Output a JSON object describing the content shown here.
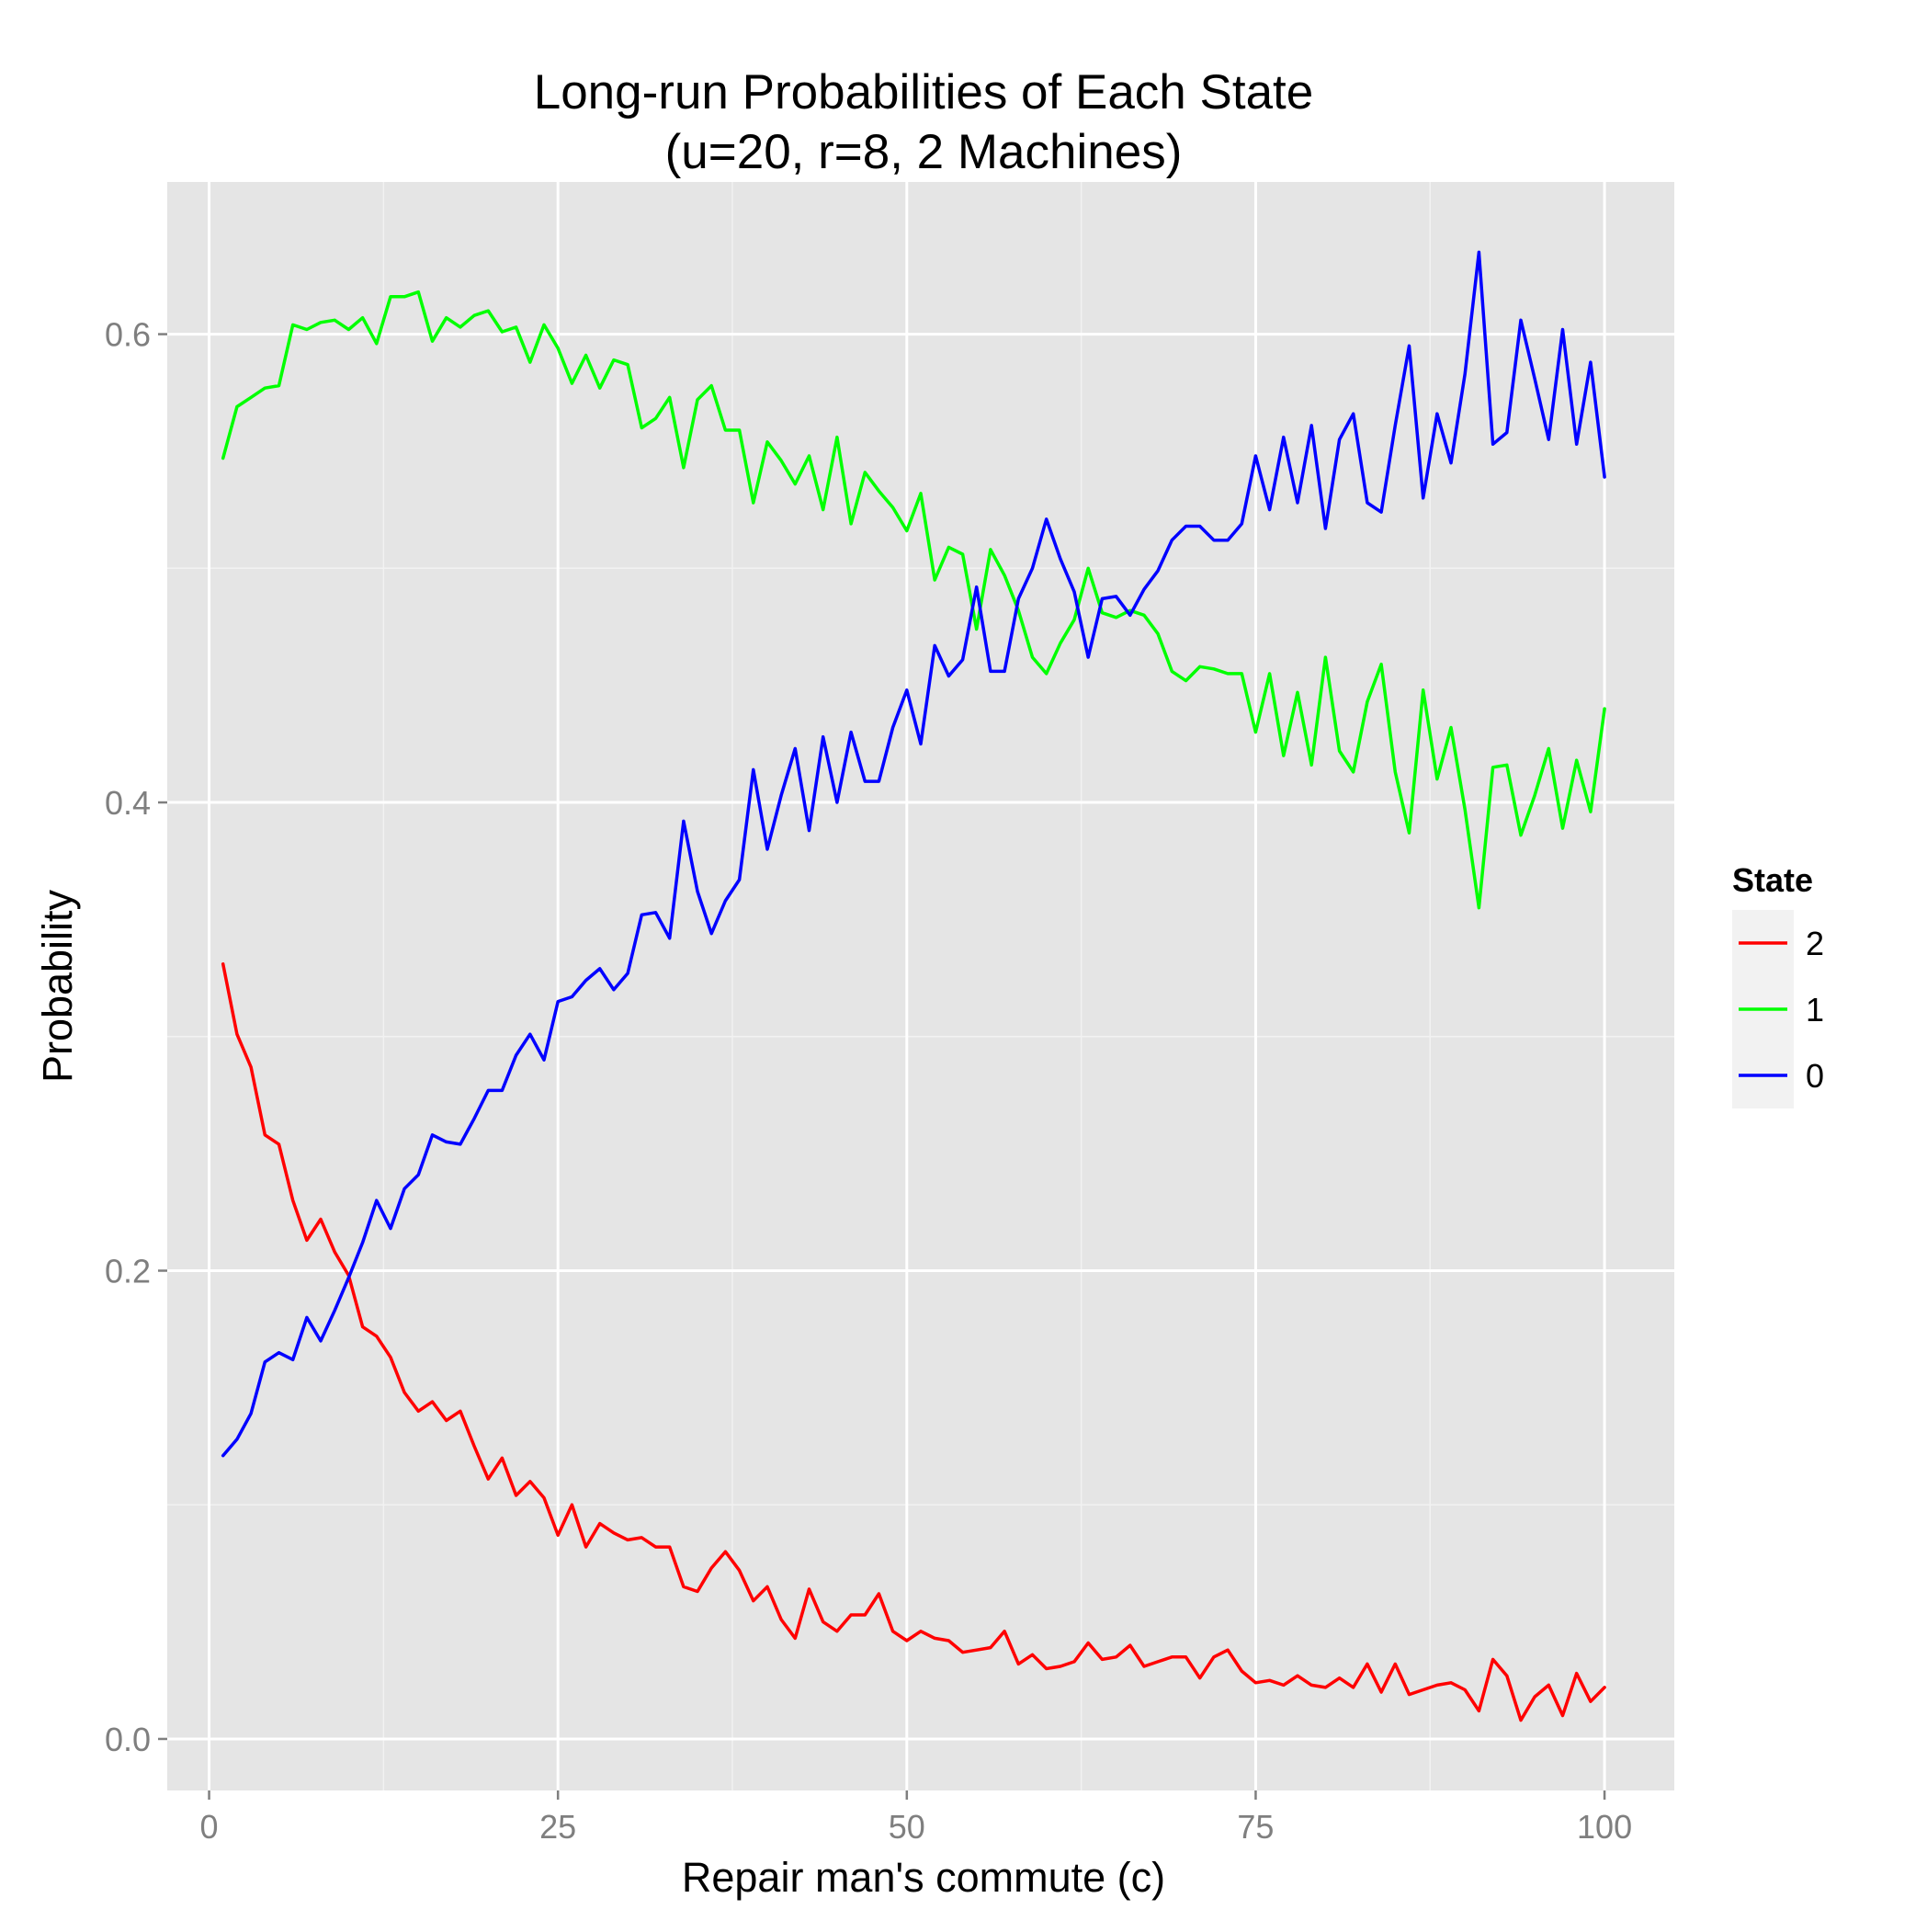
{
  "chart_data": {
    "type": "line",
    "title": "Long-run Probabilities of Each State",
    "subtitle": "(u=20, r=8, 2 Machines)",
    "xlabel": "Repair man's commute (c)",
    "ylabel": "Probability",
    "xlim": [
      -3,
      105
    ],
    "ylim": [
      -0.022,
      0.665
    ],
    "x_ticks": [
      0,
      25,
      50,
      75,
      100
    ],
    "x_tick_labels": [
      "0",
      "25",
      "50",
      "75",
      "100"
    ],
    "y_ticks": [
      0.0,
      0.2,
      0.4,
      0.6
    ],
    "y_tick_labels": [
      "0.0",
      "0.2",
      "0.4",
      "0.6"
    ],
    "grid": true,
    "legend": {
      "title": "State",
      "position": "right"
    },
    "x": [
      1,
      2,
      3,
      4,
      5,
      6,
      7,
      8,
      9,
      10,
      11,
      12,
      13,
      14,
      15,
      16,
      17,
      18,
      19,
      20,
      21,
      22,
      23,
      24,
      25,
      26,
      27,
      28,
      29,
      30,
      31,
      32,
      33,
      34,
      35,
      36,
      37,
      38,
      39,
      40,
      41,
      42,
      43,
      44,
      45,
      46,
      47,
      48,
      49,
      50,
      51,
      52,
      53,
      54,
      55,
      56,
      57,
      58,
      59,
      60,
      61,
      62,
      63,
      64,
      65,
      66,
      67,
      68,
      69,
      70,
      71,
      72,
      73,
      74,
      75,
      76,
      77,
      78,
      79,
      80,
      81,
      82,
      83,
      84,
      85,
      86,
      87,
      88,
      89,
      90,
      91,
      92,
      93,
      94,
      95,
      96,
      97,
      98,
      99,
      100
    ],
    "series": [
      {
        "name": "2",
        "color": "#ff0000",
        "values": [
          0.331,
          0.301,
          0.287,
          0.258,
          0.254,
          0.23,
          0.213,
          0.222,
          0.208,
          0.198,
          0.176,
          0.172,
          0.163,
          0.148,
          0.14,
          0.144,
          0.136,
          0.14,
          0.125,
          0.111,
          0.12,
          0.104,
          0.11,
          0.103,
          0.087,
          0.1,
          0.082,
          0.092,
          0.088,
          0.085,
          0.086,
          0.082,
          0.082,
          0.065,
          0.063,
          0.073,
          0.08,
          0.072,
          0.059,
          0.065,
          0.051,
          0.043,
          0.064,
          0.05,
          0.046,
          0.053,
          0.053,
          0.062,
          0.046,
          0.042,
          0.046,
          0.043,
          0.042,
          0.037,
          0.038,
          0.039,
          0.046,
          0.032,
          0.036,
          0.03,
          0.031,
          0.033,
          0.041,
          0.034,
          0.035,
          0.04,
          0.031,
          0.033,
          0.035,
          0.035,
          0.026,
          0.035,
          0.038,
          0.029,
          0.024,
          0.025,
          0.023,
          0.027,
          0.023,
          0.022,
          0.026,
          0.022,
          0.032,
          0.02,
          0.032,
          0.019,
          0.021,
          0.023,
          0.024,
          0.021,
          0.012,
          0.034,
          0.027,
          0.008,
          0.018,
          0.023,
          0.01,
          0.028,
          0.016,
          0.022
        ]
      },
      {
        "name": "1",
        "color": "#00ff00",
        "values": [
          0.547,
          0.569,
          0.573,
          0.577,
          0.578,
          0.604,
          0.602,
          0.605,
          0.606,
          0.602,
          0.607,
          0.596,
          0.616,
          0.616,
          0.618,
          0.597,
          0.607,
          0.603,
          0.608,
          0.61,
          0.601,
          0.603,
          0.588,
          0.604,
          0.594,
          0.579,
          0.591,
          0.577,
          0.589,
          0.587,
          0.56,
          0.564,
          0.573,
          0.543,
          0.572,
          0.578,
          0.559,
          0.559,
          0.528,
          0.554,
          0.546,
          0.536,
          0.548,
          0.525,
          0.556,
          0.519,
          0.541,
          0.533,
          0.526,
          0.516,
          0.532,
          0.495,
          0.509,
          0.506,
          0.474,
          0.508,
          0.497,
          0.482,
          0.462,
          0.455,
          0.468,
          0.478,
          0.5,
          0.481,
          0.479,
          0.482,
          0.48,
          0.472,
          0.456,
          0.452,
          0.458,
          0.457,
          0.455,
          0.455,
          0.43,
          0.455,
          0.42,
          0.447,
          0.416,
          0.462,
          0.422,
          0.413,
          0.443,
          0.459,
          0.413,
          0.387,
          0.448,
          0.41,
          0.432,
          0.397,
          0.355,
          0.415,
          0.416,
          0.386,
          0.403,
          0.423,
          0.389,
          0.418,
          0.396,
          0.44
        ]
      },
      {
        "name": "0",
        "color": "#0000ff",
        "values": [
          0.121,
          0.128,
          0.139,
          0.161,
          0.165,
          0.162,
          0.18,
          0.17,
          0.183,
          0.197,
          0.212,
          0.23,
          0.218,
          0.235,
          0.241,
          0.258,
          0.255,
          0.254,
          0.265,
          0.277,
          0.277,
          0.292,
          0.301,
          0.29,
          0.315,
          0.317,
          0.324,
          0.329,
          0.32,
          0.327,
          0.352,
          0.353,
          0.342,
          0.392,
          0.362,
          0.344,
          0.358,
          0.367,
          0.414,
          0.38,
          0.403,
          0.423,
          0.388,
          0.428,
          0.4,
          0.43,
          0.409,
          0.409,
          0.432,
          0.448,
          0.425,
          0.467,
          0.454,
          0.461,
          0.492,
          0.456,
          0.456,
          0.487,
          0.5,
          0.521,
          0.504,
          0.49,
          0.462,
          0.487,
          0.488,
          0.48,
          0.491,
          0.499,
          0.512,
          0.518,
          0.518,
          0.512,
          0.512,
          0.519,
          0.548,
          0.525,
          0.556,
          0.528,
          0.561,
          0.517,
          0.555,
          0.566,
          0.528,
          0.524,
          0.561,
          0.595,
          0.53,
          0.566,
          0.545,
          0.583,
          0.635,
          0.553,
          0.558,
          0.606,
          0.581,
          0.555,
          0.602,
          0.553,
          0.588,
          0.539
        ]
      }
    ]
  }
}
